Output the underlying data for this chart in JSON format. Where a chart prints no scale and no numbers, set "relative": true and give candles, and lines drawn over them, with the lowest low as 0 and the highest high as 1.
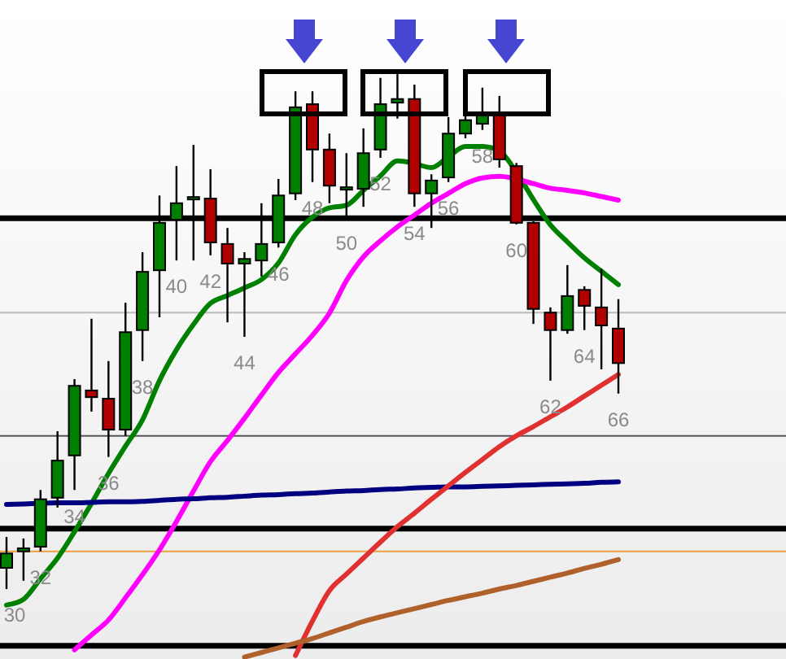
{
  "chart_data": {
    "type": "candlestick",
    "relative": true,
    "tick_labels": false,
    "categories": [
      null,
      null,
      null,
      null,
      null,
      null,
      null,
      null,
      null,
      null,
      null,
      null,
      null,
      null,
      null,
      null,
      null,
      null,
      null,
      null,
      null,
      null,
      null,
      null,
      null,
      null,
      null,
      null,
      null,
      null,
      null,
      null,
      null,
      null,
      null,
      null,
      null
    ],
    "ohlc": [
      [
        0.041,
        0.101,
        0,
        0.069
      ],
      [
        0.073,
        0.098,
        0.016,
        0.079
      ],
      [
        0.082,
        0.192,
        0.073,
        0.174
      ],
      [
        0.177,
        0.306,
        0.158,
        0.249
      ],
      [
        0.259,
        0.407,
        0.192,
        0.394
      ],
      [
        0.385,
        0.524,
        0.344,
        0.372
      ],
      [
        0.369,
        0.442,
        0.256,
        0.309
      ],
      [
        0.309,
        0.555,
        0.297,
        0.498
      ],
      [
        0.502,
        0.653,
        0.442,
        0.615
      ],
      [
        0.618,
        0.763,
        0.527,
        0.71
      ],
      [
        0.716,
        0.82,
        0.637,
        0.748
      ],
      [
        0.757,
        0.861,
        0.637,
        0.76
      ],
      [
        0.757,
        0.814,
        0.647,
        0.672
      ],
      [
        0.669,
        0.7,
        0.517,
        0.631
      ],
      [
        0.631,
        0.653,
        0.489,
        0.64
      ],
      [
        0.637,
        0.748,
        0.606,
        0.669
      ],
      [
        0.672,
        0.795,
        0.662,
        0.763
      ],
      [
        0.767,
        0.965,
        0.754,
        0.934
      ],
      [
        0.94,
        0.965,
        0.789,
        0.852
      ],
      [
        0.852,
        0.883,
        0.748,
        0.782
      ],
      [
        0.779,
        0.845,
        0.722,
        0.776
      ],
      [
        0.776,
        0.893,
        0.741,
        0.845
      ],
      [
        0.852,
        0.991,
        0.836,
        0.94
      ],
      [
        0.943,
        1,
        0.912,
        0.95
      ],
      [
        0.95,
        0.978,
        0.741,
        0.767
      ],
      [
        0.767,
        0.804,
        0.7,
        0.792
      ],
      [
        0.798,
        0.915,
        0.789,
        0.883
      ],
      [
        0.883,
        0.927,
        0.874,
        0.909
      ],
      [
        0.902,
        0.972,
        0.89,
        0.918
      ],
      [
        0.918,
        0.956,
        0.817,
        0.833
      ],
      [
        0.82,
        0.826,
        0.707,
        0.71
      ],
      [
        0.71,
        0.713,
        0.514,
        0.543
      ],
      [
        0.536,
        0.546,
        0.404,
        0.502
      ],
      [
        0.502,
        0.628,
        0.495,
        0.568
      ],
      [
        0.58,
        0.587,
        0.502,
        0.549
      ],
      [
        0.546,
        0.621,
        0.426,
        0.511
      ],
      [
        0.505,
        0.562,
        0.379,
        0.438
      ]
    ],
    "colors": [
      "#008000",
      "#008000",
      "#008000",
      "#008000",
      "#008000",
      "#b00000",
      "#b00000",
      "#008000",
      "#008000",
      "#008000",
      "#008000",
      "#008000",
      "#b00000",
      "#b00000",
      "#008000",
      "#008000",
      "#008000",
      "#008000",
      "#b00000",
      "#b00000",
      "#008000",
      "#008000",
      "#008000",
      "#008000",
      "#b00000",
      "#008000",
      "#008000",
      "#008000",
      "#008000",
      "#b00000",
      "#b00000",
      "#b00000",
      "#b00000",
      "#008000",
      "#b00000",
      "#b00000",
      "#b00000"
    ],
    "value_labels": [
      "30",
      null,
      "32",
      null,
      "34",
      null,
      "36",
      null,
      "38",
      null,
      "40",
      null,
      "42",
      null,
      "44",
      null,
      "46",
      null,
      "48",
      null,
      "50",
      null,
      "52",
      null,
      "54",
      null,
      "56",
      null,
      "58",
      null,
      "60",
      null,
      "62",
      null,
      "64",
      null,
      "66"
    ],
    "series": [
      {
        "type": "line",
        "color": "#008000",
        "values": [
          -0.031,
          -0.02,
          0.02,
          0.06,
          0.111,
          0.166,
          0.224,
          0.277,
          0.328,
          0.404,
          0.464,
          0.513,
          0.554,
          0.569,
          0.584,
          0.6,
          0.632,
          0.687,
          0.721,
          0.739,
          0.744,
          0.773,
          0.801,
          0.83,
          0.825,
          0.817,
          0.838,
          0.858,
          0.858,
          0.849,
          0.808,
          0.755,
          0.706,
          0.673,
          0.642,
          0.616,
          0.59
        ]
      },
      {
        "type": "line",
        "color": "#ff00ff",
        "values": [
          null,
          null,
          null,
          null,
          -0.118,
          -0.089,
          -0.06,
          -0.017,
          0.028,
          0.076,
          0.131,
          0.19,
          0.247,
          0.288,
          0.331,
          0.376,
          0.42,
          0.456,
          0.492,
          0.535,
          0.598,
          0.644,
          0.675,
          0.702,
          0.725,
          0.748,
          0.767,
          0.786,
          0.797,
          0.8,
          null,
          0.786,
          0.777,
          0.773,
          0.768,
          0.761,
          0.754
        ]
      },
      {
        "type": "line",
        "color": "#000080",
        "values": [
          0.164,
          0.165,
          0.166,
          0.167,
          0.167,
          0.168,
          0.169,
          0.169,
          0.17,
          0.172,
          0.174,
          0.175,
          0.177,
          0.178,
          0.18,
          0.182,
          0.183,
          0.185,
          0.186,
          0.188,
          0.19,
          0.191,
          0.193,
          0.194,
          0.196,
          0.197,
          0.198,
          0.198,
          0.199,
          0.2,
          0.201,
          0.202,
          0.203,
          0.204,
          0.205,
          0.207,
          0.208
        ]
      },
      {
        "type": "line",
        "color": "#e03030",
        "values": [
          null,
          null,
          null,
          null,
          null,
          null,
          null,
          null,
          null,
          null,
          null,
          null,
          null,
          null,
          null,
          null,
          null,
          -0.129,
          -0.062,
          -0.003,
          0.029,
          0.06,
          0.091,
          0.121,
          0.147,
          0.174,
          0.2,
          0.226,
          0.251,
          0.276,
          0.297,
          0.315,
          0.334,
          0.353,
          0.374,
          0.395,
          0.416
        ]
      },
      {
        "type": "line",
        "color": "#b0602a",
        "values": [
          null,
          null,
          null,
          null,
          null,
          null,
          null,
          null,
          null,
          null,
          null,
          null,
          null,
          null,
          -0.132,
          -0.123,
          -0.114,
          -0.105,
          -0.096,
          -0.085,
          -0.074,
          -0.063,
          -0.054,
          -0.046,
          -0.038,
          -0.03,
          -0.022,
          -0.015,
          -0.008,
          0,
          0.007,
          0.015,
          0.023,
          0.031,
          0.04,
          0.048,
          0.057
        ]
      }
    ],
    "ref_lines": [
      {
        "axis": "y",
        "value": 0.719,
        "color": "#000000"
      },
      {
        "axis": "y",
        "value": 0.536,
        "color": "#bbbbbb"
      },
      {
        "axis": "y",
        "value": 0.297,
        "color": "#555555"
      },
      {
        "axis": "y",
        "value": 0.117,
        "color": "#000000"
      },
      {
        "axis": "y",
        "value": 0.073,
        "color": "#e8a040"
      },
      {
        "axis": "y",
        "value": -0.11,
        "color": "#000000"
      }
    ]
  }
}
